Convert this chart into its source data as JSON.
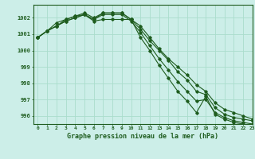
{
  "title": "Graphe pression niveau de la mer (hPa)",
  "background_color": "#cceee8",
  "grid_color": "#aaddcc",
  "line_color": "#1e5c1e",
  "xlim": [
    -0.5,
    23
  ],
  "ylim": [
    995.5,
    1002.8
  ],
  "yticks": [
    996,
    997,
    998,
    999,
    1000,
    1001,
    1002
  ],
  "xticks": [
    0,
    1,
    2,
    3,
    4,
    5,
    6,
    7,
    8,
    9,
    10,
    11,
    12,
    13,
    14,
    15,
    16,
    17,
    18,
    19,
    20,
    21,
    22,
    23
  ],
  "series": [
    [
      1000.8,
      1001.2,
      1001.5,
      1001.8,
      1002.0,
      1002.2,
      1001.9,
      1002.3,
      1002.3,
      1002.3,
      1001.9,
      1001.3,
      1000.6,
      1000.0,
      999.4,
      998.7,
      998.2,
      997.5,
      997.3,
      996.5,
      996.1,
      995.9,
      995.8,
      995.7
    ],
    [
      1000.8,
      1001.2,
      1001.5,
      1001.8,
      1002.0,
      1002.2,
      1001.9,
      1002.2,
      1002.2,
      1002.2,
      1001.8,
      1001.1,
      1000.3,
      999.5,
      998.8,
      998.1,
      997.5,
      996.9,
      997.0,
      996.2,
      995.9,
      995.7,
      995.6,
      995.5
    ],
    [
      1000.8,
      1001.2,
      1001.5,
      1001.9,
      1002.1,
      1002.3,
      1002.0,
      1002.3,
      1002.3,
      1002.3,
      1001.9,
      1001.5,
      1000.8,
      1000.1,
      999.5,
      999.0,
      998.5,
      997.9,
      997.5,
      996.8,
      996.4,
      996.2,
      996.0,
      995.8
    ],
    [
      1000.8,
      1001.2,
      1001.7,
      1001.9,
      1002.1,
      1002.2,
      1001.8,
      1001.9,
      1001.9,
      1001.9,
      1001.9,
      1000.8,
      1000.0,
      999.1,
      998.3,
      997.5,
      996.9,
      996.2,
      997.2,
      996.1,
      995.8,
      995.6,
      995.5,
      995.4
    ]
  ]
}
